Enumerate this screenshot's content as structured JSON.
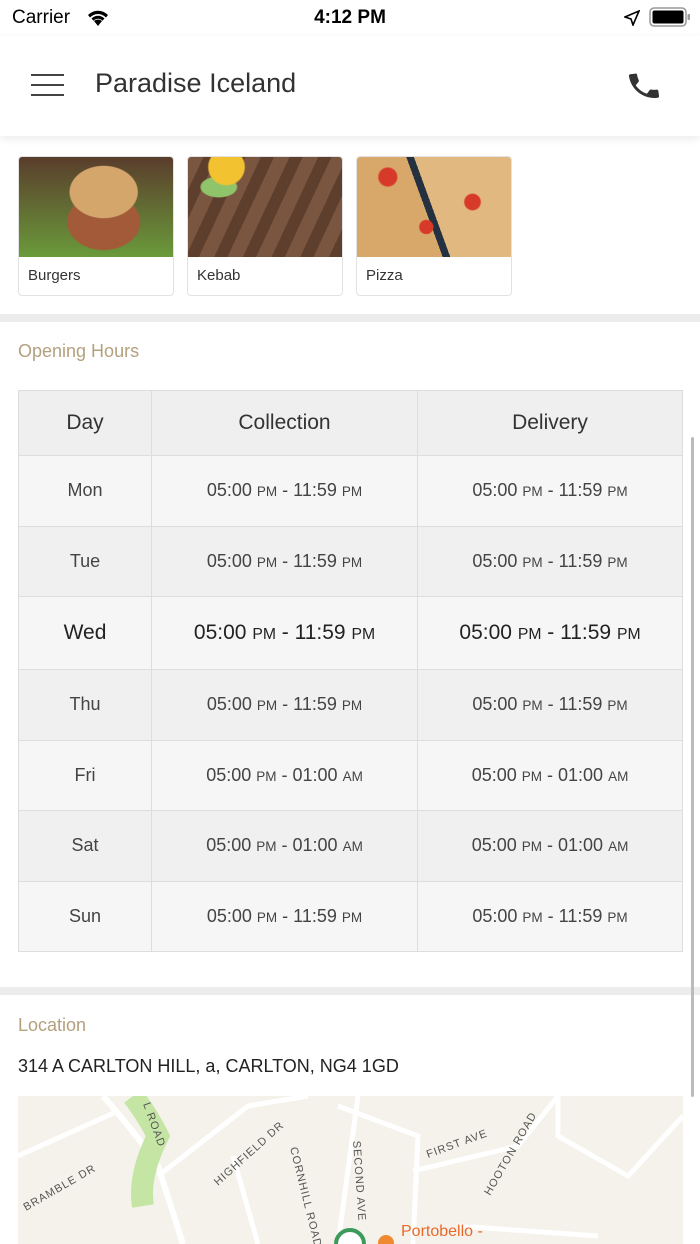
{
  "status_bar": {
    "carrier": "Carrier",
    "time": "4:12 PM"
  },
  "header": {
    "title": "Paradise Iceland"
  },
  "categories": [
    {
      "label": "Burgers",
      "color": "#b86a3a"
    },
    {
      "label": "Kebab",
      "color": "#6e4a33"
    },
    {
      "label": "Pizza",
      "color": "#b8482e"
    }
  ],
  "opening_hours": {
    "title": "Opening Hours",
    "columns": [
      "Day",
      "Collection",
      "Delivery"
    ],
    "today": "Wed",
    "rows": [
      {
        "day": "Mon",
        "collection": [
          "05:00",
          "PM",
          "11:59",
          "PM"
        ],
        "delivery": [
          "05:00",
          "PM",
          "11:59",
          "PM"
        ]
      },
      {
        "day": "Tue",
        "collection": [
          "05:00",
          "PM",
          "11:59",
          "PM"
        ],
        "delivery": [
          "05:00",
          "PM",
          "11:59",
          "PM"
        ]
      },
      {
        "day": "Wed",
        "collection": [
          "05:00",
          "PM",
          "11:59",
          "PM"
        ],
        "delivery": [
          "05:00",
          "PM",
          "11:59",
          "PM"
        ]
      },
      {
        "day": "Thu",
        "collection": [
          "05:00",
          "PM",
          "11:59",
          "PM"
        ],
        "delivery": [
          "05:00",
          "PM",
          "11:59",
          "PM"
        ]
      },
      {
        "day": "Fri",
        "collection": [
          "05:00",
          "PM",
          "01:00",
          "AM"
        ],
        "delivery": [
          "05:00",
          "PM",
          "01:00",
          "AM"
        ]
      },
      {
        "day": "Sat",
        "collection": [
          "05:00",
          "PM",
          "01:00",
          "AM"
        ],
        "delivery": [
          "05:00",
          "PM",
          "01:00",
          "AM"
        ]
      },
      {
        "day": "Sun",
        "collection": [
          "05:00",
          "PM",
          "11:59",
          "PM"
        ],
        "delivery": [
          "05:00",
          "PM",
          "11:59",
          "PM"
        ]
      }
    ]
  },
  "location": {
    "title": "Location",
    "address": "314 A CARLTON HILL, a, CARLTON, NG4 1GD",
    "map_labels": [
      "L ROAD",
      "BRAMBLE DR",
      "HIGHFIELD DR",
      "CORNHILL ROAD",
      "SECOND AVE",
      "FIRST AVE",
      "HOOTON ROAD",
      "Portobello -"
    ]
  }
}
